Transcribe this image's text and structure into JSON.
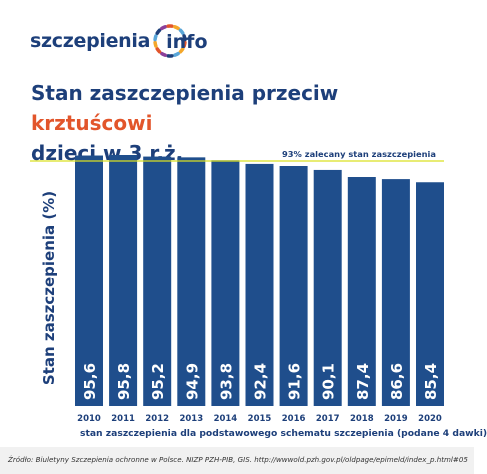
{
  "brand": {
    "name": "szczepienia",
    "suffix": "info",
    "color": "#1d3f7a",
    "ring_colors": [
      "#e2552b",
      "#f4a72a",
      "#5aa6d8",
      "#1d3f7a",
      "#8b3f9a"
    ]
  },
  "title": {
    "part1": "Stan zaszczepienia przeciw ",
    "highlight": "krztuścowi",
    "part2": "dzieci w 3 r.ż.",
    "highlight_color": "#e2552b"
  },
  "chart_data": {
    "type": "bar",
    "categories": [
      "2010",
      "2011",
      "2012",
      "2013",
      "2014",
      "2015",
      "2016",
      "2017",
      "2018",
      "2019",
      "2020"
    ],
    "values": [
      95.6,
      95.8,
      95.2,
      94.9,
      93.8,
      92.4,
      91.6,
      90.1,
      87.4,
      86.6,
      85.4
    ],
    "value_labels": [
      "95,6",
      "95,8",
      "95,2",
      "94,9",
      "93,8",
      "92,4",
      "91,6",
      "90,1",
      "87,4",
      "86,6",
      "85,4"
    ],
    "ylabel": "Stan zaszczepienia (%)",
    "xlabel": "stan zaszczepienia dla podstawowego schematu szczepienia (podane 4 dawki)",
    "ylim": [
      0,
      100
    ],
    "bar_color": "#1f4e8c",
    "reference_line": {
      "value": 93,
      "label": "93% zalecany stan zaszczepienia",
      "color": "#d9e021"
    },
    "grid": false
  },
  "source": "Źródło: Biuletyny Szczepienia ochronne w Polsce. NIZP PZH-PIB, GIS. http://wwwold.pzh.gov.pl/oldpage/epimeld/index_p.html#05"
}
